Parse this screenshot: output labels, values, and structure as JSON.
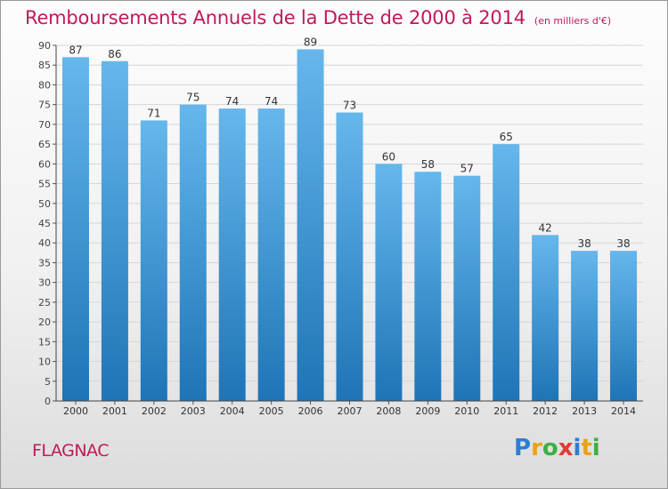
{
  "title": "Remboursements Annuels de la Dette de 2000 à 2014",
  "unit": "(en milliers d'€)",
  "commune": "FLAGNAC",
  "logo": {
    "letters": [
      "P",
      "r",
      "o",
      "x",
      "i",
      "t",
      "i"
    ],
    "colors": [
      "#2e7dd1",
      "#e8a317",
      "#3cb043",
      "#e53935",
      "#2e7dd1",
      "#e8a317",
      "#3cb043"
    ]
  },
  "colors": {
    "bar_top": "#65b7ec",
    "bar_bottom": "#1f74b6",
    "title": "#c2185b"
  },
  "chart_data": {
    "type": "bar",
    "categories": [
      "2000",
      "2001",
      "2002",
      "2003",
      "2004",
      "2005",
      "2006",
      "2007",
      "2008",
      "2009",
      "2010",
      "2011",
      "2012",
      "2013",
      "2014"
    ],
    "values": [
      87,
      86,
      71,
      75,
      74,
      74,
      89,
      73,
      60,
      58,
      57,
      65,
      42,
      38,
      38
    ],
    "ylim": [
      0,
      90
    ],
    "yticks": [
      0,
      5,
      10,
      15,
      20,
      25,
      30,
      35,
      40,
      45,
      50,
      55,
      60,
      65,
      70,
      75,
      80,
      85,
      90
    ],
    "grid": true,
    "data_labels": true
  }
}
